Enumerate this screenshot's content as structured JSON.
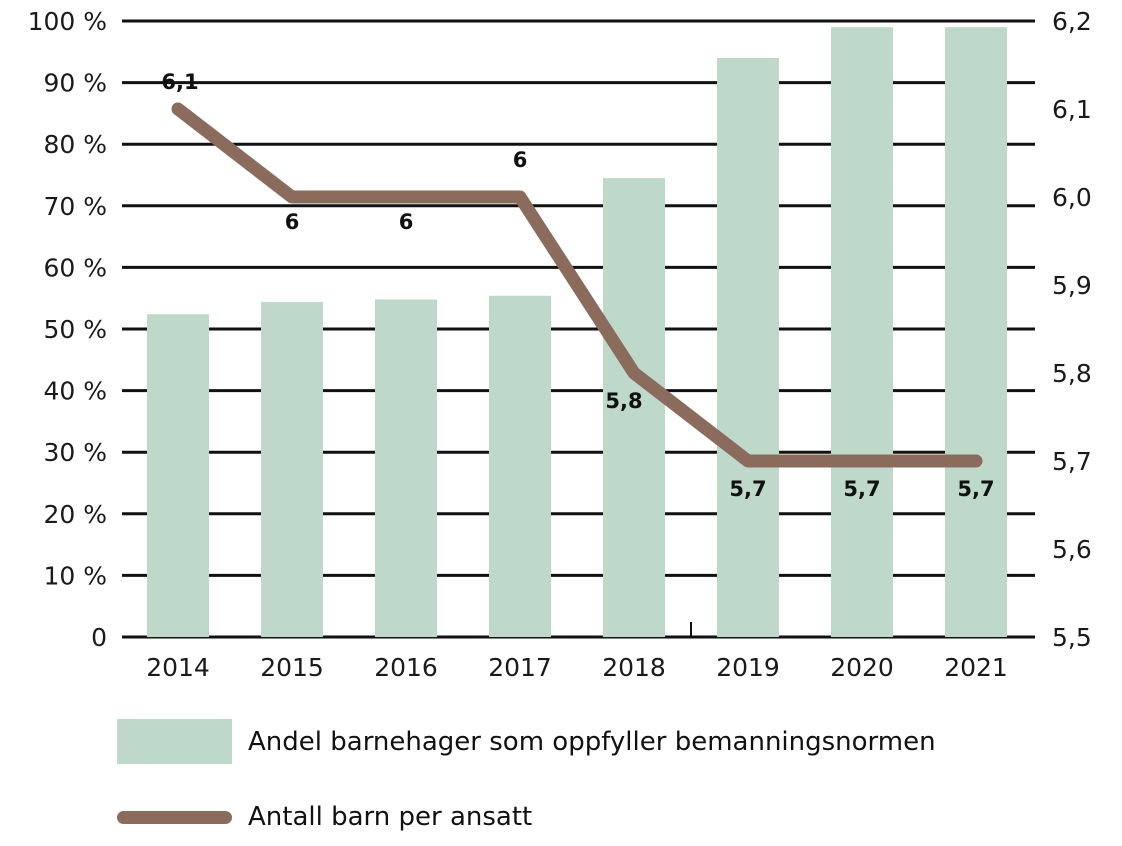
{
  "chart_data": {
    "type": "bar+line",
    "categories": [
      "2014",
      "2015",
      "2016",
      "2017",
      "2018",
      "2019",
      "2020",
      "2021"
    ],
    "series": [
      {
        "name": "Andel barnehager som oppfyller bemanningsnormen",
        "type": "bar",
        "axis": "left",
        "color": "#bed9ca",
        "values": [
          52.4,
          54.4,
          54.8,
          55.4,
          74.5,
          94,
          99,
          99
        ]
      },
      {
        "name": "Antall barn per ansatt",
        "type": "line",
        "axis": "right",
        "color": "#8a6b5c",
        "values": [
          6.1,
          6.0,
          6.0,
          6.0,
          5.8,
          5.7,
          5.7,
          5.7
        ],
        "data_labels": [
          "6,1",
          "6",
          "6",
          "6",
          "5,8",
          "5,7",
          "5,7",
          "5,7"
        ]
      }
    ],
    "left_axis": {
      "ylim": [
        0,
        100
      ],
      "ticks": [
        "0",
        "10 %",
        "20 %",
        "30 %",
        "40 %",
        "50 %",
        "60 %",
        "70 %",
        "80 %",
        "90 %",
        "100 %"
      ]
    },
    "right_axis": {
      "ylim": [
        5.5,
        6.2
      ],
      "ticks": [
        "5,5",
        "5,6",
        "5,7",
        "5,8",
        "5,9",
        "6,0",
        "6,1",
        "6,2"
      ]
    },
    "grid": true,
    "legend_position": "bottom",
    "title": "",
    "xlabel": "",
    "ylabel": ""
  },
  "legend": {
    "bar_label": "Andel barnehager som oppfyller bemanningsnormen",
    "line_label": "Antall barn per ansatt"
  }
}
